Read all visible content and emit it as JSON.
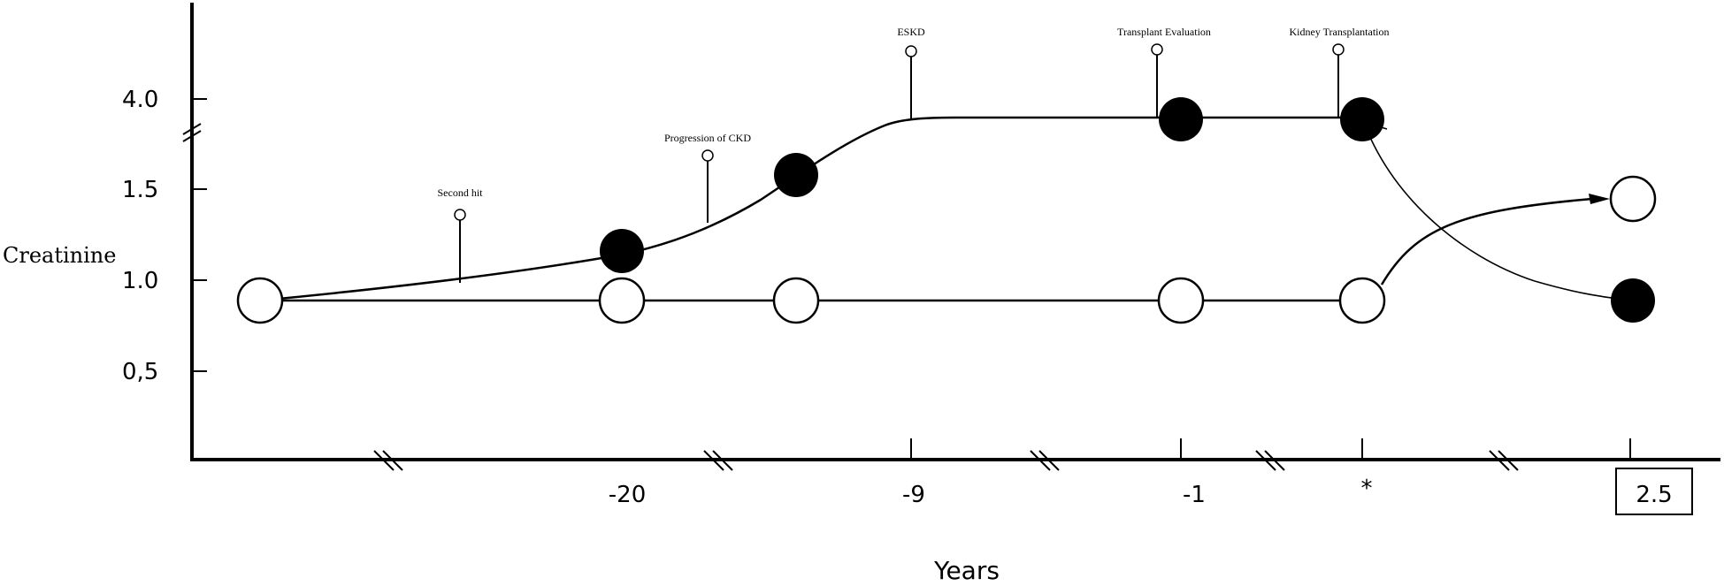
{
  "chart_data": {
    "type": "line",
    "xlabel": "Years",
    "ylabel": "Creatinine",
    "y_tick_labels": [
      "0,5",
      "1.0",
      "1.5",
      "4.0"
    ],
    "x_tick_labels": [
      "-20",
      "-9",
      "-1",
      "*",
      "2.5"
    ],
    "x_highlighted_tick": "2.5",
    "axis_breaks": true,
    "series": [
      {
        "marker": "filled",
        "points": [
          {
            "x": "",
            "y": 0.9
          },
          {
            "x": "-20",
            "y": 1.17
          },
          {
            "x": "-9 (before)",
            "y": 1.58
          },
          {
            "x": "-1",
            "y": 3.9
          },
          {
            "x": "*",
            "y": 3.9
          },
          {
            "x": "2.5",
            "y": 0.9
          }
        ]
      },
      {
        "marker": "open",
        "points": [
          {
            "x": "",
            "y": 0.9
          },
          {
            "x": "-20",
            "y": 0.9
          },
          {
            "x": "-9 (before)",
            "y": 0.9
          },
          {
            "x": "-1",
            "y": 0.9
          },
          {
            "x": "*",
            "y": 0.9
          },
          {
            "x": "2.5",
            "y": 1.45
          }
        ]
      }
    ],
    "events": [
      {
        "label": "Second hit"
      },
      {
        "label": "Progression of CKD"
      },
      {
        "label": "ESKD"
      },
      {
        "label": "Transplant Evaluation"
      },
      {
        "label": "Kidney Transplantation"
      }
    ]
  }
}
